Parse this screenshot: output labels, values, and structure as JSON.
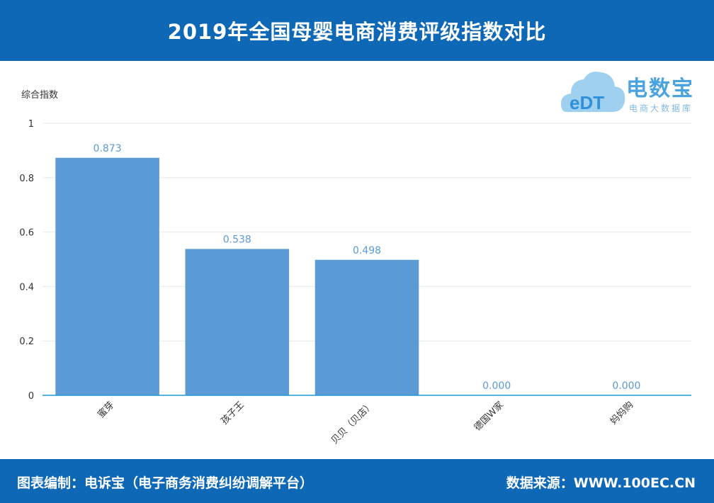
{
  "header": {
    "title": "2019年全国母婴电商消费评级指数对比"
  },
  "logo": {
    "brand": "电数宝",
    "subtitle": "电商大数据库",
    "mark": "eDT",
    "icon": "cloud-icon"
  },
  "footer": {
    "left": "图表编制：电诉宝（电子商务消费纠纷调解平台）",
    "right": "数据来源：WWW.100EC.CN"
  },
  "colors": {
    "header_bg": "#0e68b6",
    "bar": "#5b9bd5",
    "axis": "#1f9ad6",
    "grid": "#e8e8e8"
  },
  "chart_data": {
    "type": "bar",
    "title": "2019年全国母婴电商消费评级指数对比",
    "ylabel": "综合指数",
    "xlabel": "",
    "ylim": [
      0,
      1
    ],
    "yticks": [
      0,
      0.2,
      0.4,
      0.6,
      0.8,
      1
    ],
    "ytick_labels": [
      "0",
      "0.2",
      "0.4",
      "0.6",
      "0.8",
      "1"
    ],
    "grid": true,
    "categories": [
      "蜜芽",
      "孩子王",
      "贝贝（贝店）",
      "德国W家",
      "妈妈购"
    ],
    "values": [
      0.873,
      0.538,
      0.498,
      0.0,
      0.0
    ],
    "data_labels": [
      "0.873",
      "0.538",
      "0.498",
      "0.000",
      "0.000"
    ]
  }
}
